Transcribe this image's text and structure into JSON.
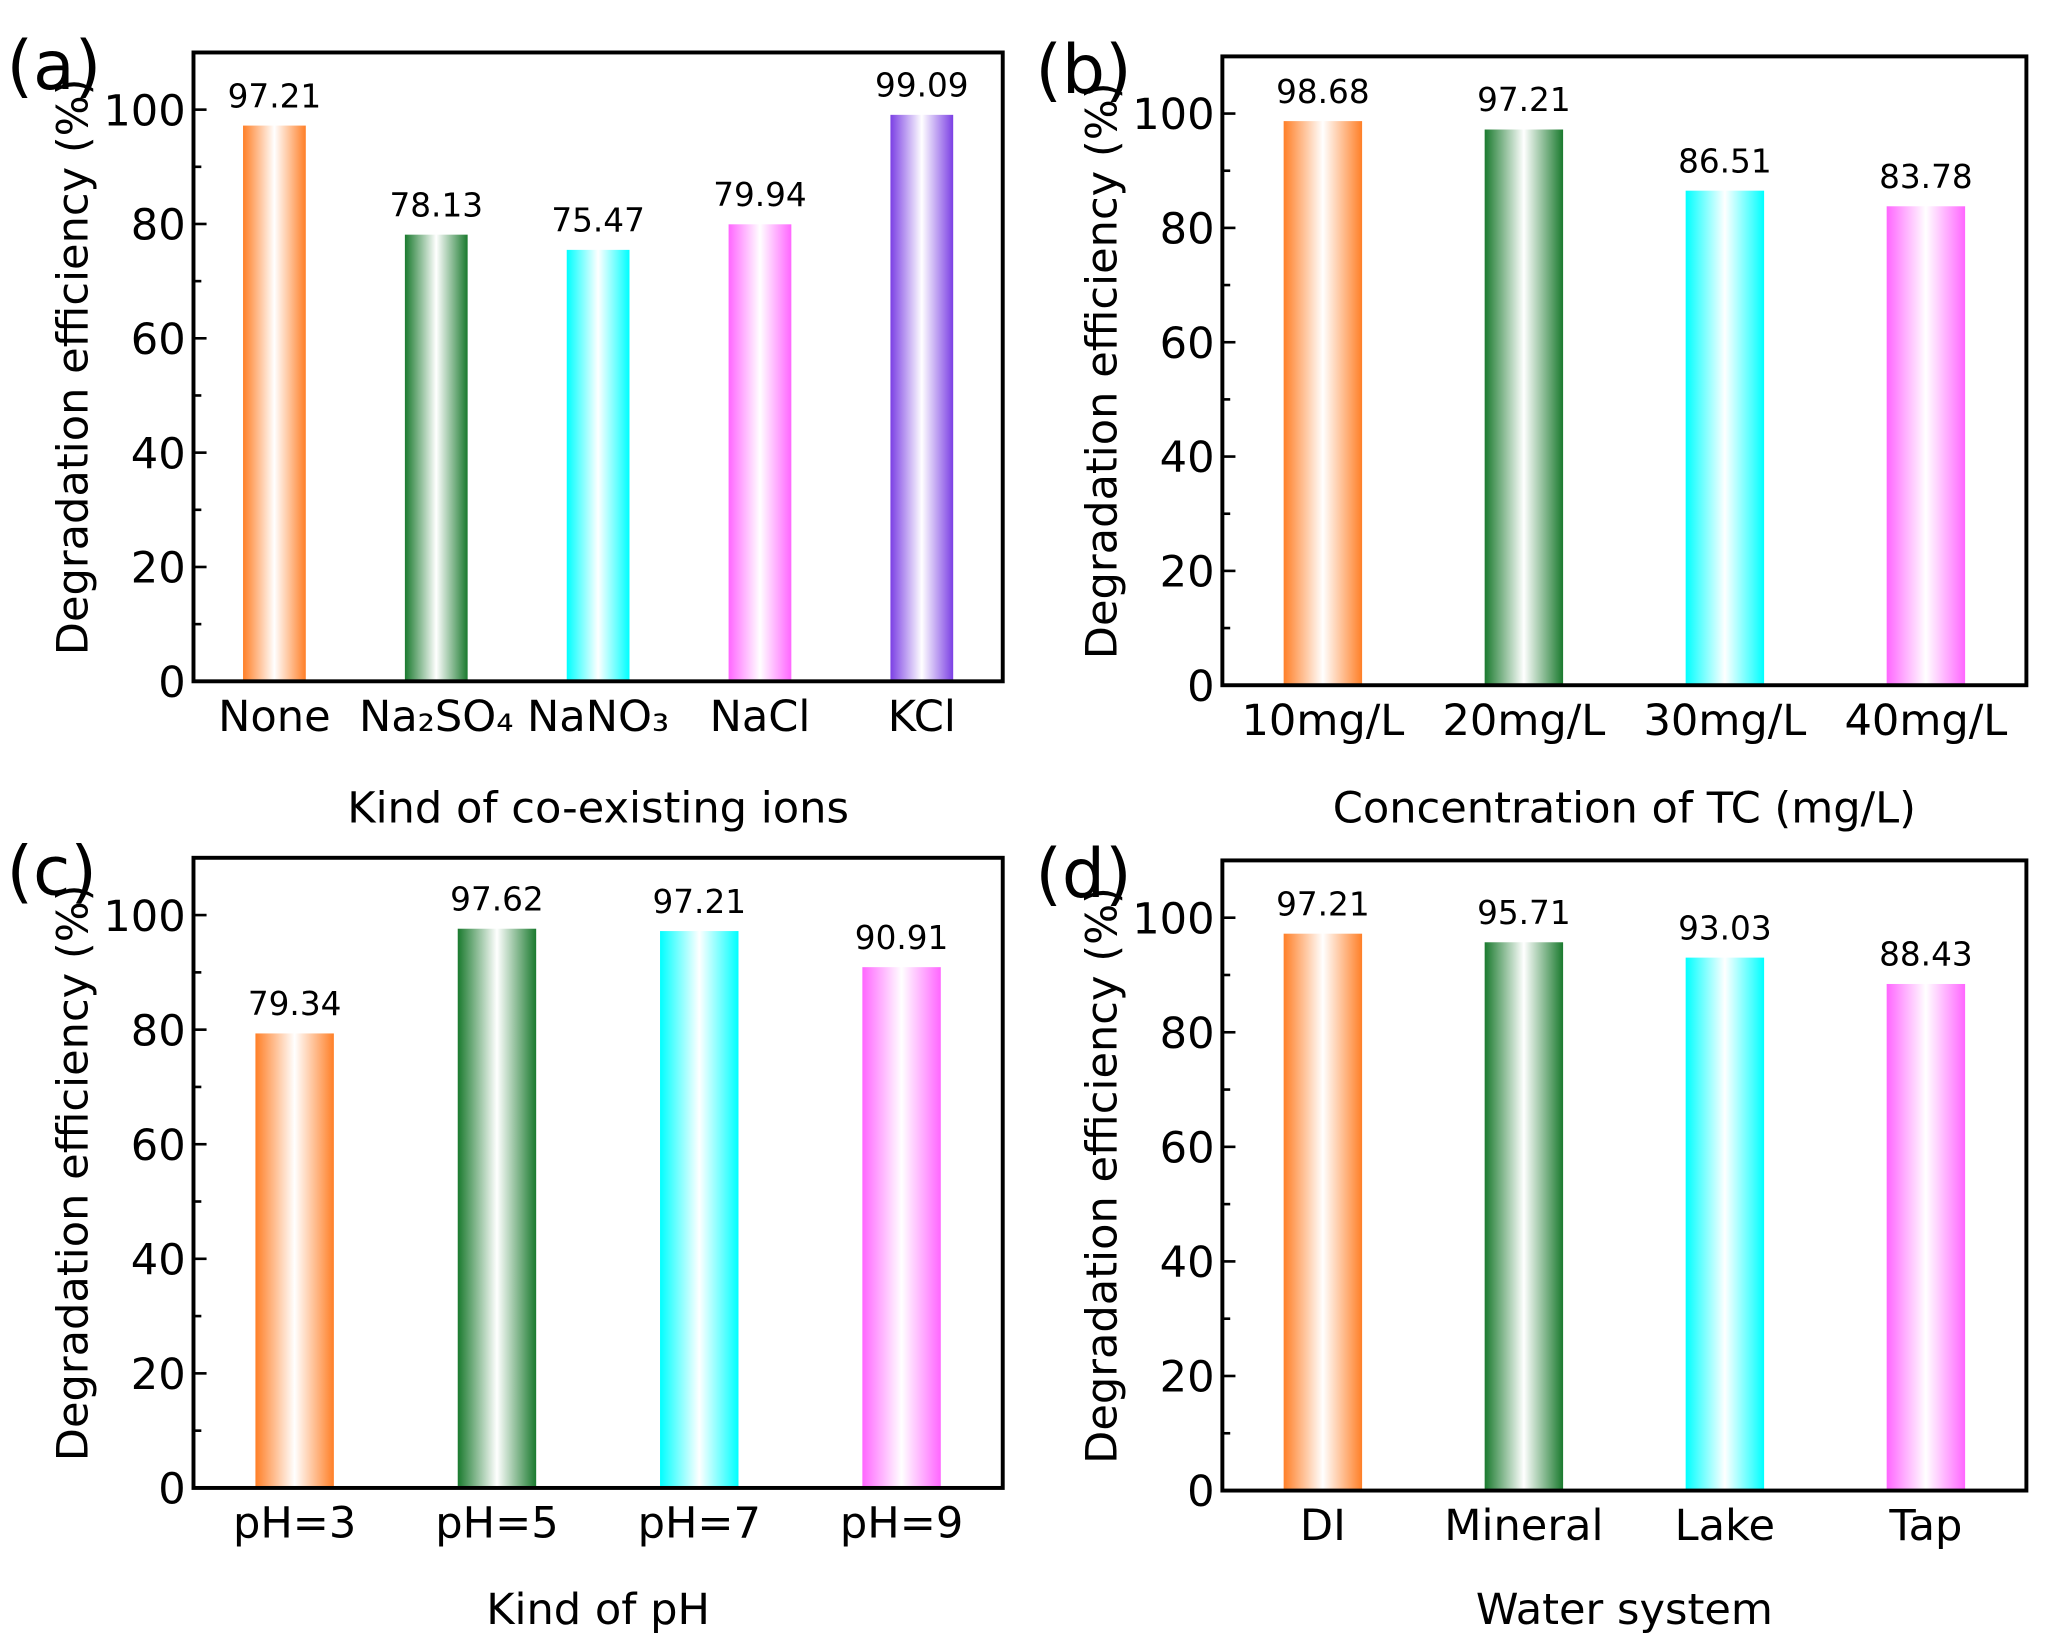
{
  "chart_data": [
    {
      "type": "bar",
      "panel_label": "(a)",
      "x_label": "Kind of co-existing ions",
      "y_label": "Degradation efficiency (%)",
      "categories": [
        "None",
        "Na₂SO₄",
        "NaNO₃",
        "NaCl",
        "KCl"
      ],
      "values": [
        97.21,
        78.13,
        75.47,
        79.94,
        99.09
      ],
      "colors": [
        "#ff7f27",
        "#1a7a2e",
        "#00ffff",
        "#ff66ff",
        "#7b3fe4"
      ],
      "ylim": [
        0,
        110
      ],
      "yticks": [
        0,
        20,
        40,
        60,
        80,
        100
      ]
    },
    {
      "type": "bar",
      "panel_label": "(b)",
      "x_label": "Concentration of TC (mg/L)",
      "y_label": "Degradation efficiency (%)",
      "categories": [
        "10mg/L",
        "20mg/L",
        "30mg/L",
        "40mg/L"
      ],
      "values": [
        98.68,
        97.21,
        86.51,
        83.78
      ],
      "colors": [
        "#ff7f27",
        "#1a7a2e",
        "#00ffff",
        "#ff66ff"
      ],
      "ylim": [
        0,
        110
      ],
      "yticks": [
        0,
        20,
        40,
        60,
        80,
        100
      ]
    },
    {
      "type": "bar",
      "panel_label": "(c)",
      "x_label": "Kind of pH",
      "y_label": "Degradation efficiency (%)",
      "categories": [
        "pH=3",
        "pH=5",
        "pH=7",
        "pH=9"
      ],
      "values": [
        79.34,
        97.62,
        97.21,
        90.91
      ],
      "colors": [
        "#ff7f27",
        "#1a7a2e",
        "#00ffff",
        "#ff66ff"
      ],
      "ylim": [
        0,
        110
      ],
      "yticks": [
        0,
        20,
        40,
        60,
        80,
        100
      ]
    },
    {
      "type": "bar",
      "panel_label": "(d)",
      "x_label": "Water system",
      "y_label": "Degradation efficiency (%)",
      "categories": [
        "DI",
        "Mineral",
        "Lake",
        "Tap"
      ],
      "values": [
        97.21,
        95.71,
        93.03,
        88.43
      ],
      "colors": [
        "#ff7f27",
        "#1a7a2e",
        "#00ffff",
        "#ff66ff"
      ],
      "ylim": [
        0,
        110
      ],
      "yticks": [
        0,
        20,
        40,
        60,
        80,
        100
      ]
    }
  ]
}
